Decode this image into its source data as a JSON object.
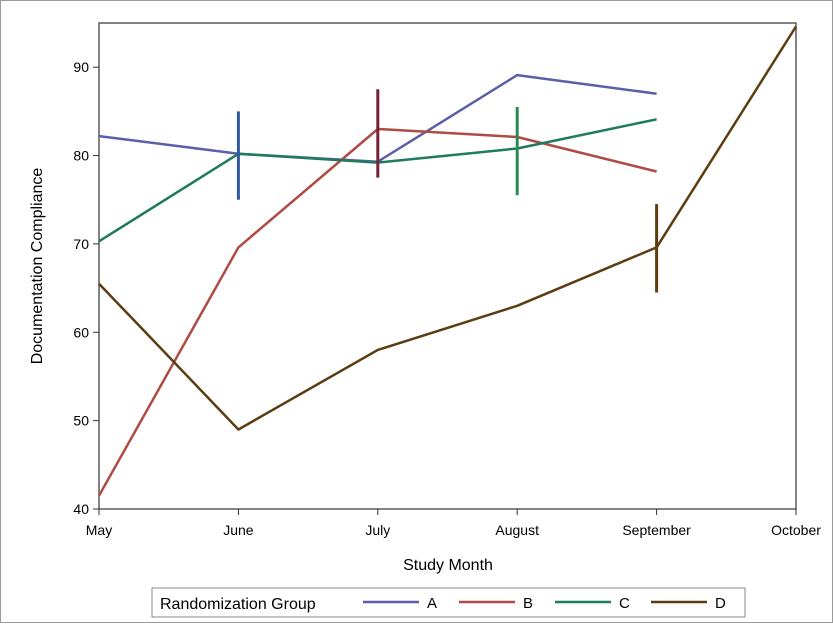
{
  "chart_data": {
    "type": "line",
    "title": "",
    "xlabel": "Study Month",
    "ylabel": "Documentation Compliance",
    "categories": [
      "May",
      "June",
      "July",
      "August",
      "September",
      "October"
    ],
    "ylim": [
      40,
      95
    ],
    "yticks": [
      40,
      50,
      60,
      70,
      80,
      90
    ],
    "grid": false,
    "legend": {
      "title": "Randomization Group",
      "placement": "bottom-center"
    },
    "series": [
      {
        "name": "A",
        "color": "#5a5fa8",
        "values": [
          82.2,
          80.2,
          79.3,
          89.1,
          87.0,
          null
        ]
      },
      {
        "name": "B",
        "color": "#b04a44",
        "values": [
          41.5,
          69.6,
          83.0,
          82.1,
          78.2,
          null
        ]
      },
      {
        "name": "C",
        "color": "#1f7a5e",
        "values": [
          70.3,
          80.2,
          79.2,
          80.8,
          84.1,
          null
        ]
      },
      {
        "name": "D",
        "color": "#5c3d12",
        "values": [
          65.5,
          49.0,
          58.0,
          63.0,
          69.6,
          94.6
        ]
      }
    ],
    "error_bars": [
      {
        "category": "June",
        "color": "#2f5aa0",
        "low": 75.0,
        "high": 85.0
      },
      {
        "category": "July",
        "color": "#7a2036",
        "low": 77.5,
        "high": 87.5
      },
      {
        "category": "August",
        "color": "#2a8a56",
        "low": 75.5,
        "high": 85.5
      },
      {
        "category": "September",
        "color": "#5c3d12",
        "low": 64.5,
        "high": 74.5
      }
    ]
  }
}
